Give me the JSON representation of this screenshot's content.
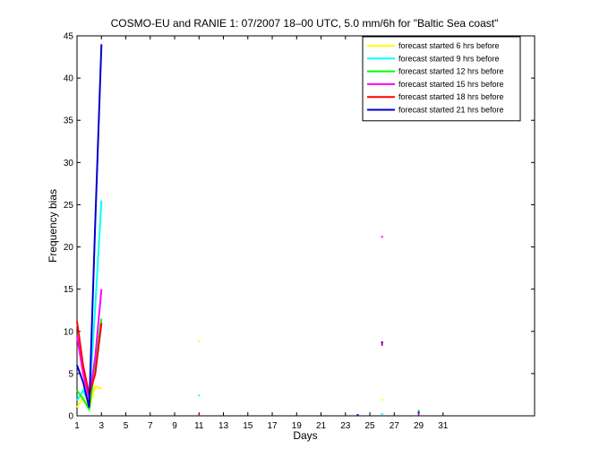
{
  "chart_data": {
    "type": "line",
    "title": "COSMO-EU and RANIE 1: 07/2007 18–00 UTC, 5.0 mm/6h for \"Baltic Sea coast\"",
    "xlabel": "Days",
    "ylabel": "Frequency bias",
    "xlim": [
      1,
      38.5
    ],
    "ylim": [
      0,
      45
    ],
    "x_ticks": [
      1,
      3,
      5,
      7,
      9,
      11,
      13,
      15,
      17,
      19,
      21,
      23,
      25,
      27,
      29,
      31
    ],
    "y_ticks": [
      0,
      5,
      10,
      15,
      20,
      25,
      30,
      35,
      40,
      45
    ],
    "legend_position": "top-right",
    "grid": false,
    "series": [
      {
        "name": "forecast started 6 hrs before",
        "color": "#ffff00",
        "lines": [
          [
            [
              1,
              1.0
            ],
            [
              1.5,
              2.2
            ],
            [
              2,
              1.0
            ],
            [
              2.5,
              3.5
            ],
            [
              3,
              3.2
            ]
          ]
        ],
        "points": [
          [
            11,
            8.8
          ],
          [
            26,
            1.9
          ],
          [
            29,
            0.2
          ]
        ]
      },
      {
        "name": "forecast started 9 hrs before",
        "color": "#00ffff",
        "lines": [
          [
            [
              1,
              1.8
            ],
            [
              1.5,
              3.0
            ],
            [
              2,
              1.5
            ],
            [
              2.5,
              13.0
            ],
            [
              3,
              25.5
            ]
          ]
        ],
        "points": [
          [
            11,
            2.4
          ],
          [
            26,
            0.2
          ],
          [
            29,
            0.3
          ]
        ]
      },
      {
        "name": "forecast started 12 hrs before",
        "color": "#00ff00",
        "lines": [
          [
            [
              1,
              3.0
            ],
            [
              1.5,
              2.0
            ],
            [
              2,
              0.8
            ],
            [
              2.5,
              6.0
            ],
            [
              3,
              11.5
            ]
          ]
        ],
        "points": [
          [
            29,
            0.6
          ]
        ]
      },
      {
        "name": "forecast started 15 hrs before",
        "color": "#ff00ff",
        "lines": [
          [
            [
              1,
              9.5
            ],
            [
              1.5,
              5.0
            ],
            [
              2,
              2.0
            ],
            [
              2.5,
              7.0
            ],
            [
              3,
              15.0
            ]
          ]
        ],
        "points": [
          [
            26,
            21.2
          ],
          [
            26,
            8.6
          ],
          [
            29,
            0.2
          ]
        ]
      },
      {
        "name": "forecast started 18 hrs before",
        "color": "#ff0000",
        "lines": [
          [
            [
              1,
              11.2
            ],
            [
              1.5,
              6.0
            ],
            [
              2,
              2.5
            ],
            [
              2.5,
              5.0
            ],
            [
              3,
              11.0
            ]
          ]
        ],
        "points": [
          [
            26,
            8.4
          ],
          [
            11,
            0.1
          ]
        ]
      },
      {
        "name": "forecast started 21 hrs before",
        "color": "#0000cc",
        "lines": [
          [
            [
              1,
              6.0
            ],
            [
              1.5,
              4.0
            ],
            [
              2,
              1.0
            ],
            [
              2.5,
              23.0
            ],
            [
              3,
              44.0
            ]
          ]
        ],
        "points": [
          [
            24,
            0.1
          ],
          [
            26,
            8.7
          ],
          [
            29,
            0.4
          ]
        ]
      }
    ]
  }
}
